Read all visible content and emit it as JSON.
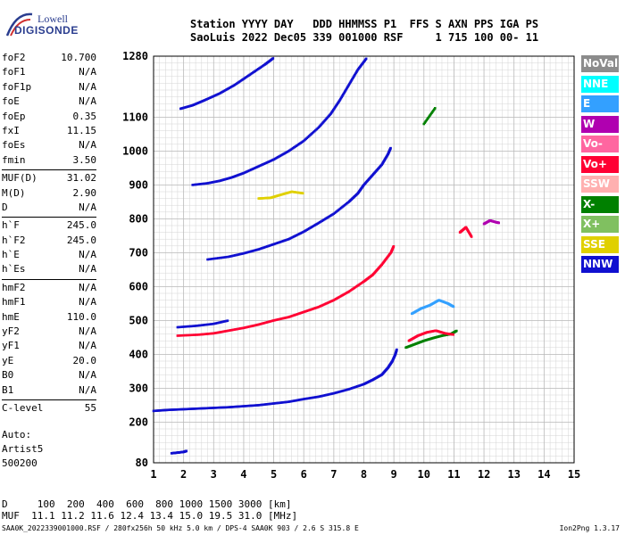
{
  "header": {
    "logo_line1": "Lowell",
    "logo_line2": "DIGISONDE",
    "row1": "Station YYYY DAY   DDD HHMMSS P1  FFS S AXN PPS IGA PS",
    "row2": "SaoLuis 2022 Dec05 339 001000 RSF     1 715 100 00- 11"
  },
  "params": {
    "group1": [
      {
        "name": "foF2",
        "value": "10.700"
      },
      {
        "name": "foF1",
        "value": "N/A"
      },
      {
        "name": "foF1p",
        "value": "N/A"
      },
      {
        "name": "foE",
        "value": "N/A"
      },
      {
        "name": "foEp",
        "value": "0.35"
      },
      {
        "name": "fxI",
        "value": "11.15"
      },
      {
        "name": "foEs",
        "value": "N/A"
      },
      {
        "name": "fmin",
        "value": "3.50"
      }
    ],
    "group2": [
      {
        "name": "MUF(D)",
        "value": "31.02"
      },
      {
        "name": "M(D)",
        "value": "2.90"
      },
      {
        "name": "D",
        "value": "N/A"
      }
    ],
    "group3": [
      {
        "name": "h`F",
        "value": "245.0"
      },
      {
        "name": "h`F2",
        "value": "245.0"
      },
      {
        "name": "h`E",
        "value": "N/A"
      },
      {
        "name": "h`Es",
        "value": "N/A"
      }
    ],
    "group4": [
      {
        "name": "hmF2",
        "value": "N/A"
      },
      {
        "name": "hmF1",
        "value": "N/A"
      },
      {
        "name": "hmE",
        "value": "110.0"
      },
      {
        "name": "yF2",
        "value": "N/A"
      },
      {
        "name": "yF1",
        "value": "N/A"
      },
      {
        "name": "yE",
        "value": "20.0"
      },
      {
        "name": "B0",
        "value": "N/A"
      },
      {
        "name": "B1",
        "value": "N/A"
      }
    ],
    "group5": [
      {
        "name": "C-level",
        "value": "55"
      }
    ]
  },
  "auto": {
    "line1": "Auto:",
    "line2": "Artist5",
    "line3": "500200"
  },
  "legend": [
    {
      "label": "NoVal",
      "color": "#8c8c8c"
    },
    {
      "label": "NNE",
      "color": "#00ffff"
    },
    {
      "label": "E",
      "color": "#33a0ff"
    },
    {
      "label": "W",
      "color": "#b000b0"
    },
    {
      "label": "Vo-",
      "color": "#ff66a0"
    },
    {
      "label": "Vo+",
      "color": "#ff0033"
    },
    {
      "label": "SSW",
      "color": "#ffb0b0"
    },
    {
      "label": "X-",
      "color": "#008000"
    },
    {
      "label": "X+",
      "color": "#80c060"
    },
    {
      "label": "SSE",
      "color": "#e0d000"
    },
    {
      "label": "NNW",
      "color": "#1010d0"
    }
  ],
  "footer": {
    "line1": "D     100  200  400  600  800 1000 1500 3000 [km]",
    "line2": "MUF  11.1 11.2 11.6 12.4 13.4 15.0 19.5 31.0 [MHz]",
    "source": "SAA0K_2022339001000.RSF / 280fx256h 50 kHz 5.0 km / DPS-4 SAA0K 903 / 2.6 S 315.8 E",
    "version": "Ion2Png 1.3.17"
  },
  "chart_data": {
    "type": "scatter",
    "x_range": [
      1,
      15
    ],
    "y_range": [
      80,
      1280
    ],
    "x_ticks": [
      1,
      2,
      3,
      4,
      5,
      6,
      7,
      8,
      9,
      10,
      11,
      12,
      13,
      14,
      15
    ],
    "y_ticks": [
      80,
      200,
      300,
      400,
      500,
      600,
      700,
      800,
      900,
      1000,
      1100,
      1280
    ],
    "grid": true,
    "traces": [
      {
        "color": "#1010d0",
        "points": [
          [
            1.0,
            233
          ],
          [
            1.5,
            236
          ],
          [
            2.0,
            238
          ],
          [
            2.5,
            240
          ],
          [
            3.0,
            242
          ],
          [
            3.5,
            244
          ],
          [
            4.0,
            247
          ],
          [
            4.5,
            250
          ],
          [
            5.0,
            255
          ],
          [
            5.5,
            260
          ],
          [
            6.0,
            268
          ],
          [
            6.5,
            275
          ],
          [
            7.0,
            285
          ],
          [
            7.5,
            297
          ],
          [
            8.0,
            312
          ],
          [
            8.3,
            325
          ],
          [
            8.6,
            340
          ],
          [
            8.8,
            360
          ],
          [
            8.95,
            380
          ],
          [
            9.05,
            400
          ],
          [
            9.1,
            415
          ]
        ]
      },
      {
        "color": "#ff0033",
        "points": [
          [
            1.8,
            455
          ],
          [
            2.5,
            458
          ],
          [
            3.0,
            462
          ],
          [
            3.5,
            470
          ],
          [
            4.0,
            478
          ],
          [
            4.5,
            488
          ],
          [
            5.0,
            500
          ],
          [
            5.5,
            510
          ],
          [
            6.0,
            525
          ],
          [
            6.5,
            540
          ],
          [
            7.0,
            560
          ],
          [
            7.5,
            585
          ],
          [
            8.0,
            615
          ],
          [
            8.3,
            635
          ],
          [
            8.6,
            665
          ],
          [
            8.9,
            700
          ],
          [
            9.0,
            720
          ]
        ]
      },
      {
        "color": "#1010d0",
        "points": [
          [
            2.8,
            680
          ],
          [
            3.5,
            688
          ],
          [
            4.0,
            698
          ],
          [
            4.5,
            710
          ],
          [
            5.0,
            725
          ],
          [
            5.5,
            740
          ],
          [
            6.0,
            762
          ],
          [
            6.5,
            788
          ],
          [
            7.0,
            815
          ],
          [
            7.5,
            850
          ],
          [
            7.8,
            875
          ],
          [
            8.0,
            900
          ],
          [
            8.3,
            930
          ],
          [
            8.6,
            960
          ],
          [
            8.8,
            990
          ],
          [
            8.9,
            1010
          ]
        ]
      },
      {
        "color": "#1010d0",
        "points": [
          [
            2.3,
            900
          ],
          [
            2.8,
            905
          ],
          [
            3.2,
            912
          ],
          [
            3.6,
            922
          ],
          [
            4.0,
            935
          ],
          [
            4.5,
            955
          ],
          [
            5.0,
            975
          ],
          [
            5.5,
            1000
          ],
          [
            6.0,
            1030
          ],
          [
            6.5,
            1070
          ],
          [
            6.9,
            1110
          ],
          [
            7.2,
            1150
          ],
          [
            7.5,
            1195
          ],
          [
            7.8,
            1240
          ],
          [
            8.1,
            1275
          ]
        ]
      },
      {
        "color": "#1010d0",
        "points": [
          [
            1.9,
            1125
          ],
          [
            2.3,
            1135
          ],
          [
            2.7,
            1150
          ],
          [
            3.2,
            1170
          ],
          [
            3.7,
            1195
          ],
          [
            4.2,
            1225
          ],
          [
            4.7,
            1255
          ],
          [
            5.0,
            1275
          ]
        ]
      },
      {
        "color": "#1010d0",
        "points": [
          [
            1.8,
            480
          ],
          [
            2.4,
            484
          ],
          [
            3.0,
            490
          ],
          [
            3.5,
            500
          ]
        ]
      },
      {
        "color": "#008000",
        "points": [
          [
            9.4,
            420
          ],
          [
            9.7,
            430
          ],
          [
            10.0,
            440
          ],
          [
            10.3,
            448
          ],
          [
            10.6,
            455
          ],
          [
            10.9,
            460
          ],
          [
            11.1,
            470
          ]
        ]
      },
      {
        "color": "#ff0033",
        "points": [
          [
            9.5,
            440
          ],
          [
            9.8,
            455
          ],
          [
            10.1,
            465
          ],
          [
            10.4,
            470
          ],
          [
            10.7,
            462
          ],
          [
            11.0,
            458
          ]
        ]
      },
      {
        "color": "#33a0ff",
        "points": [
          [
            9.6,
            520
          ],
          [
            9.9,
            535
          ],
          [
            10.2,
            545
          ],
          [
            10.5,
            560
          ],
          [
            10.8,
            550
          ],
          [
            11.0,
            540
          ]
        ]
      },
      {
        "color": "#1010d0",
        "points": [
          [
            1.6,
            108
          ],
          [
            1.8,
            110
          ],
          [
            2.0,
            112
          ],
          [
            2.1,
            115
          ]
        ]
      },
      {
        "color": "#e0d000",
        "points": [
          [
            4.5,
            860
          ],
          [
            4.9,
            862
          ],
          [
            5.2,
            870
          ],
          [
            5.6,
            880
          ],
          [
            6.0,
            875
          ]
        ]
      },
      {
        "color": "#b000b0",
        "points": [
          [
            12.0,
            785
          ],
          [
            12.2,
            795
          ],
          [
            12.4,
            790
          ],
          [
            12.5,
            788
          ]
        ]
      },
      {
        "color": "#ff0033",
        "points": [
          [
            11.2,
            760
          ],
          [
            11.4,
            775
          ],
          [
            11.6,
            745
          ]
        ]
      },
      {
        "color": "#008000",
        "points": [
          [
            10.0,
            1080
          ],
          [
            10.4,
            1130
          ]
        ]
      }
    ]
  }
}
